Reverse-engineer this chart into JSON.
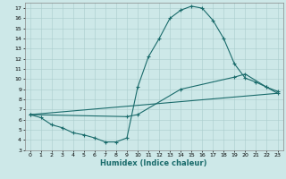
{
  "title": "",
  "xlabel": "Humidex (Indice chaleur)",
  "ylabel": "",
  "xlim": [
    -0.5,
    23.5
  ],
  "ylim": [
    3,
    17.5
  ],
  "xticks": [
    0,
    1,
    2,
    3,
    4,
    5,
    6,
    7,
    8,
    9,
    10,
    11,
    12,
    13,
    14,
    15,
    16,
    17,
    18,
    19,
    20,
    21,
    22,
    23
  ],
  "yticks": [
    3,
    4,
    5,
    6,
    7,
    8,
    9,
    10,
    11,
    12,
    13,
    14,
    15,
    16,
    17
  ],
  "bg_color": "#cde8e8",
  "grid_color": "#aacccc",
  "line_color": "#1a6b6b",
  "line1_x": [
    0,
    1,
    2,
    3,
    4,
    5,
    6,
    7,
    8,
    9,
    10,
    11,
    12,
    13,
    14,
    15,
    16,
    17,
    18,
    19,
    20,
    21,
    22,
    23
  ],
  "line1_y": [
    6.5,
    6.2,
    5.5,
    5.2,
    4.7,
    4.5,
    4.2,
    3.8,
    3.8,
    4.2,
    9.2,
    12.2,
    14.0,
    16.0,
    16.8,
    17.2,
    17.0,
    15.8,
    14.0,
    11.5,
    10.1,
    9.7,
    9.2,
    8.6
  ],
  "line2_x": [
    0,
    9,
    10,
    14,
    19,
    20,
    22,
    23
  ],
  "line2_y": [
    6.5,
    6.3,
    6.5,
    9.0,
    10.2,
    10.5,
    9.2,
    8.8
  ],
  "line3_x": [
    0,
    23
  ],
  "line3_y": [
    6.5,
    8.6
  ]
}
